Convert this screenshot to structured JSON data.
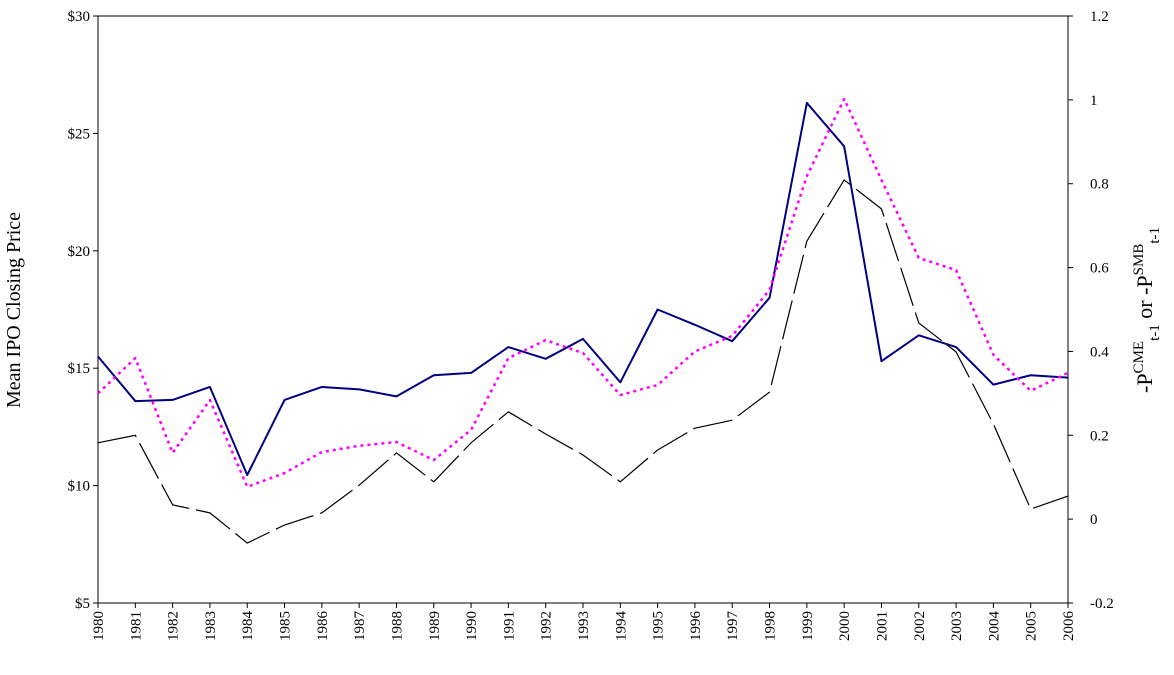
{
  "chart_data": {
    "type": "line",
    "ylabel": "Mean IPO Closing Price",
    "y2label": [
      "-P",
      "CME",
      "t-1",
      " or -P",
      "SMB",
      "t-1"
    ],
    "categories": [
      "1980",
      "1981",
      "1982",
      "1983",
      "1984",
      "1985",
      "1986",
      "1987",
      "1988",
      "1989",
      "1990",
      "1991",
      "1992",
      "1993",
      "1994",
      "1995",
      "1996",
      "1997",
      "1998",
      "1999",
      "2000",
      "2001",
      "2002",
      "2003",
      "2004",
      "2005",
      "2006"
    ],
    "ylim": [
      5,
      30
    ],
    "yticks": [
      {
        "value": 5,
        "label": "$5"
      },
      {
        "value": 10,
        "label": "$10"
      },
      {
        "value": 15,
        "label": "$15"
      },
      {
        "value": 20,
        "label": "$20"
      },
      {
        "value": 25,
        "label": "$25"
      },
      {
        "value": 30,
        "label": "$30"
      }
    ],
    "y2lim": [
      -0.2,
      1.2
    ],
    "y2ticks": [
      -0.2,
      0,
      0.2,
      0.4,
      0.6,
      0.8,
      1,
      1.2
    ],
    "series": [
      {
        "color": "#000080",
        "style": "solid",
        "axis": "y",
        "values": [
          15.5,
          13.6,
          13.65,
          14.2,
          10.45,
          13.65,
          14.2,
          14.1,
          13.8,
          14.7,
          14.8,
          15.9,
          15.4,
          16.25,
          14.4,
          17.5,
          16.85,
          16.15,
          18.0,
          26.3,
          24.45,
          15.3,
          16.4,
          15.9,
          14.3,
          14.7,
          14.6
        ]
      },
      {
        "color": "#ff00ff",
        "style": "dotted",
        "axis": "y2",
        "values": [
          0.3,
          0.384,
          0.158,
          0.284,
          0.077,
          0.11,
          0.16,
          0.175,
          0.184,
          0.141,
          0.213,
          0.384,
          0.427,
          0.396,
          0.296,
          0.32,
          0.4,
          0.437,
          0.547,
          0.818,
          1.002,
          0.809,
          0.623,
          0.594,
          0.392,
          0.306,
          0.349
        ]
      },
      {
        "color": "#000000",
        "style": "dashed",
        "axis": "y2",
        "values": [
          0.182,
          0.2,
          0.034,
          0.015,
          -0.057,
          -0.014,
          0.015,
          0.081,
          0.158,
          0.089,
          0.182,
          0.256,
          0.203,
          0.153,
          0.089,
          0.165,
          0.217,
          0.236,
          0.303,
          0.663,
          0.809,
          0.74,
          0.468,
          0.399,
          0.227,
          0.024,
          0.055
        ]
      }
    ]
  }
}
